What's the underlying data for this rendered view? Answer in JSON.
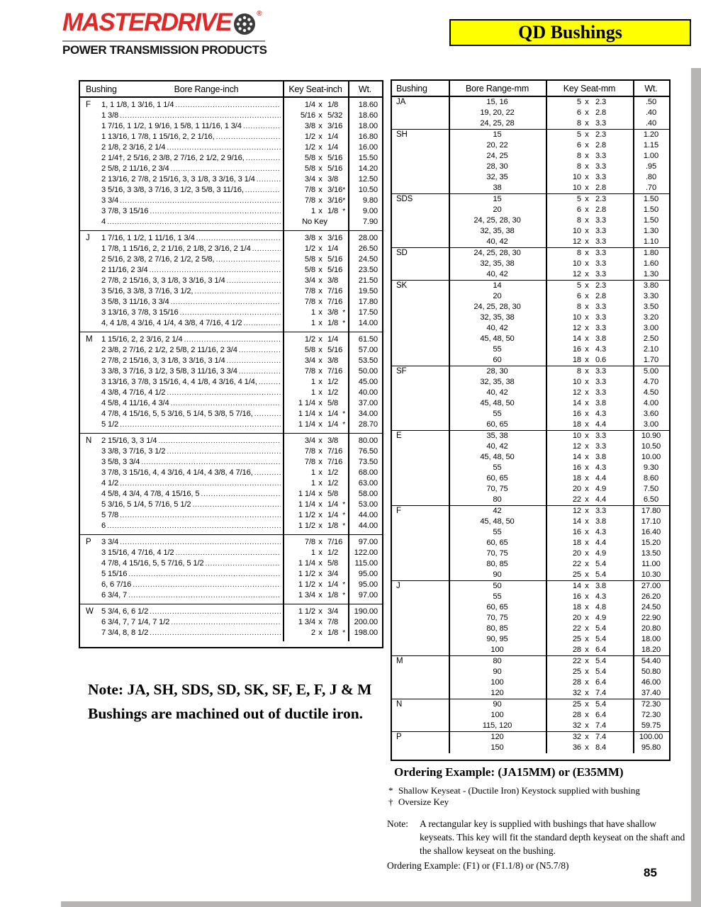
{
  "header": {
    "brand": "MASTERDRIVE",
    "brand_registered": "®",
    "brand_subtitle": "POWER TRANSMISSION PRODUCTS",
    "page_title": "QD Bushings"
  },
  "colors": {
    "brand_red": "#e32726",
    "title_bg": "#ffff00"
  },
  "inch_table": {
    "columns": [
      "Bushing",
      "Bore Range-inch",
      "Key Seat-inch",
      "Wt."
    ],
    "sections": [
      {
        "code": "F",
        "rows": [
          {
            "bore": "1, 1 1/8, 1 3/16, 1 1/4",
            "kw": "1/4",
            "kd": "1/8",
            "star": "",
            "wt": "18.60"
          },
          {
            "bore": "1 3/8",
            "kw": "5/16",
            "kd": "5/32",
            "star": "",
            "wt": "18.60"
          },
          {
            "bore": "1 7/16, 1 1/2, 1 9/16, 1 5/8, 1 11/16, 1 3/4",
            "kw": "3/8",
            "kd": "3/16",
            "star": "",
            "wt": "18.00"
          },
          {
            "bore": "1 13/16, 1 7/8, 1 15/16, 2, 2 1/16,",
            "kw": "1/2",
            "kd": "1/4",
            "star": "",
            "wt": "16.80"
          },
          {
            "bore": "2 1/8, 2 3/16, 2 1/4",
            "kw": "1/2",
            "kd": "1/4",
            "star": "",
            "wt": "16.00"
          },
          {
            "bore": "2 1/4†, 2 5/16, 2 3/8, 2 7/16, 2 1/2, 2 9/16,",
            "kw": "5/8",
            "kd": "5/16",
            "star": "",
            "wt": "15.50"
          },
          {
            "bore": "2 5/8, 2 11/16, 2 3/4",
            "kw": "5/8",
            "kd": "5/16",
            "star": "",
            "wt": "14.20"
          },
          {
            "bore": "2 13/16, 2 7/8, 2 15/16, 3, 3 1/8, 3 3/16, 3 1/4",
            "kw": "3/4",
            "kd": "3/8",
            "star": "",
            "wt": "12.50"
          },
          {
            "bore": "3 5/16, 3 3/8, 3 7/16, 3 1/2, 3 5/8, 3 11/16,",
            "kw": "7/8",
            "kd": "3/16",
            "star": "*",
            "wt": "10.50"
          },
          {
            "bore": "3 3/4",
            "kw": "7/8",
            "kd": "3/16",
            "star": "*",
            "wt": "9.80"
          },
          {
            "bore": "3 7/8, 3 15/16",
            "kw": "1",
            "kd": "1/8",
            "star": "*",
            "wt": "9.00"
          },
          {
            "bore": "4",
            "kw": "No Key",
            "kd": "",
            "star": "",
            "wt": "7.90"
          }
        ]
      },
      {
        "code": "J",
        "rows": [
          {
            "bore": "1 7/16, 1 1/2, 1 11/16, 1 3/4",
            "kw": "3/8",
            "kd": "3/16",
            "star": "",
            "wt": "28.00"
          },
          {
            "bore": "1 7/8, 1 15/16, 2, 2 1/16, 2 1/8, 2 3/16, 2 1/4",
            "kw": "1/2",
            "kd": "1/4",
            "star": "",
            "wt": "26.50"
          },
          {
            "bore": "2 5/16, 2 3/8, 2 7/16, 2 1/2, 2 5/8,",
            "kw": "5/8",
            "kd": "5/16",
            "star": "",
            "wt": "24.50"
          },
          {
            "bore": "2 11/16, 2 3/4",
            "kw": "5/8",
            "kd": "5/16",
            "star": "",
            "wt": "23.50"
          },
          {
            "bore": "2 7/8, 2 15/16, 3, 3 1/8, 3 3/16, 3 1/4",
            "kw": "3/4",
            "kd": "3/8",
            "star": "",
            "wt": "21.50"
          },
          {
            "bore": "3 5/16, 3 3/8, 3 7/16, 3 1/2,",
            "kw": "7/8",
            "kd": "7/16",
            "star": "",
            "wt": "19.50"
          },
          {
            "bore": "3 5/8, 3 11/16, 3 3/4",
            "kw": "7/8",
            "kd": "7/16",
            "star": "",
            "wt": "17.80"
          },
          {
            "bore": "3 13/16, 3 7/8, 3 15/16",
            "kw": "1",
            "kd": "3/8",
            "star": "*",
            "wt": "17.50"
          },
          {
            "bore": "4, 4 1/8, 4 3/16, 4 1/4, 4 3/8, 4 7/16, 4 1/2",
            "kw": "1",
            "kd": "1/8",
            "star": "*",
            "wt": "14.00"
          }
        ]
      },
      {
        "code": "M",
        "rows": [
          {
            "bore": "1 15/16, 2, 2 3/16, 2 1/4",
            "kw": "1/2",
            "kd": "1/4",
            "star": "",
            "wt": "61.50"
          },
          {
            "bore": "2 3/8, 2 7/16, 2 1/2, 2 5/8, 2 11/16, 2 3/4",
            "kw": "5/8",
            "kd": "5/16",
            "star": "",
            "wt": "57.00"
          },
          {
            "bore": "2 7/8, 2 15/16, 3, 3 1/8, 3 3/16, 3 1/4",
            "kw": "3/4",
            "kd": "3/8",
            "star": "",
            "wt": "53.50"
          },
          {
            "bore": "3 3/8, 3 7/16, 3 1/2, 3 5/8, 3 11/16, 3 3/4",
            "kw": "7/8",
            "kd": "7/16",
            "star": "",
            "wt": "50.00"
          },
          {
            "bore": "3 13/16, 3 7/8, 3 15/16, 4, 4 1/8, 4 3/16, 4 1/4,",
            "kw": "1",
            "kd": "1/2",
            "star": "",
            "wt": "45.00"
          },
          {
            "bore": "4 3/8, 4 7/16, 4 1/2",
            "kw": "1",
            "kd": "1/2",
            "star": "",
            "wt": "40.00"
          },
          {
            "bore": "4 5/8, 4 11/16, 4 3/4",
            "kw": "1 1/4",
            "kd": "5/8",
            "star": "",
            "wt": "37.00"
          },
          {
            "bore": "4 7/8, 4 15/16, 5, 5 3/16, 5 1/4, 5 3/8, 5 7/16,",
            "kw": "1 1/4",
            "kd": "1/4",
            "star": "*",
            "wt": "34.00"
          },
          {
            "bore": "5 1/2",
            "kw": "1 1/4",
            "kd": "1/4",
            "star": "*",
            "wt": "28.70"
          }
        ]
      },
      {
        "code": "N",
        "rows": [
          {
            "bore": "2 15/16, 3, 3 1/4",
            "kw": "3/4",
            "kd": "3/8",
            "star": "",
            "wt": "80.00"
          },
          {
            "bore": "3 3/8, 3 7/16, 3 1/2",
            "kw": "7/8",
            "kd": "7/16",
            "star": "",
            "wt": "76.50"
          },
          {
            "bore": "3 5/8, 3 3/4",
            "kw": "7/8",
            "kd": "7/16",
            "star": "",
            "wt": "73.50"
          },
          {
            "bore": "3 7/8, 3 15/16, 4, 4 3/16, 4 1/4, 4 3/8, 4 7/16,",
            "kw": "1",
            "kd": "1/2",
            "star": "",
            "wt": "68.00"
          },
          {
            "bore": "4 1/2",
            "kw": "1",
            "kd": "1/2",
            "star": "",
            "wt": "63.00"
          },
          {
            "bore": "4 5/8, 4 3/4, 4 7/8, 4 15/16, 5",
            "kw": "1 1/4",
            "kd": "5/8",
            "star": "",
            "wt": "58.00"
          },
          {
            "bore": "5 3/16, 5 1/4, 5 7/16, 5 1/2",
            "kw": "1 1/4",
            "kd": "1/4",
            "star": "*",
            "wt": "53.00"
          },
          {
            "bore": "5 7/8",
            "kw": "1 1/2",
            "kd": "1/4",
            "star": "*",
            "wt": "44.00"
          },
          {
            "bore": "6",
            "kw": "1 1/2",
            "kd": "1/8",
            "star": "*",
            "wt": "44.00"
          }
        ]
      },
      {
        "code": "P",
        "rows": [
          {
            "bore": "3 3/4",
            "kw": "7/8",
            "kd": "7/16",
            "star": "",
            "wt": "97.00"
          },
          {
            "bore": "3 15/16, 4 7/16, 4 1/2",
            "kw": "1",
            "kd": "1/2",
            "star": "",
            "wt": "122.00"
          },
          {
            "bore": "4 7/8, 4 15/16, 5, 5 7/16, 5 1/2",
            "kw": "1 1/4",
            "kd": "5/8",
            "star": "",
            "wt": "115.00"
          },
          {
            "bore": "5 15/16",
            "kw": "1 1/2",
            "kd": "3/4",
            "star": "",
            "wt": "95.00"
          },
          {
            "bore": "6, 6 7/16",
            "kw": "1 1/2",
            "kd": "1/4",
            "star": "*",
            "wt": "95.00"
          },
          {
            "bore": "6 3/4, 7",
            "kw": "1 3/4",
            "kd": "1/8",
            "star": "*",
            "wt": "97.00"
          }
        ]
      },
      {
        "code": "W",
        "rows": [
          {
            "bore": "5 3/4, 6, 6 1/2",
            "kw": "1 1/2",
            "kd": "3/4",
            "star": "",
            "wt": "190.00"
          },
          {
            "bore": "6 3/4, 7, 7 1/4, 7 1/2",
            "kw": "1 3/4",
            "kd": "7/8",
            "star": "",
            "wt": "200.00"
          },
          {
            "bore": "7 3/4, 8, 8 1/2",
            "kw": "2",
            "kd": "1/8",
            "star": "*",
            "wt": "198.00"
          }
        ]
      }
    ]
  },
  "mm_table": {
    "columns": [
      "Bushing",
      "Bore Range-mm",
      "Key Seat-mm",
      "Wt."
    ],
    "sections": [
      {
        "code": "JA",
        "rows": [
          {
            "bore": "15, 16",
            "kw": "5",
            "kd": "2.3",
            "wt": ".50"
          },
          {
            "bore": "19, 20, 22",
            "kw": "6",
            "kd": "2.8",
            "wt": ".40"
          },
          {
            "bore": "24, 25, 28",
            "kw": "8",
            "kd": "3.3",
            "wt": ".40"
          }
        ]
      },
      {
        "code": "SH",
        "rows": [
          {
            "bore": "15",
            "kw": "5",
            "kd": "2.3",
            "wt": "1.20"
          },
          {
            "bore": "20, 22",
            "kw": "6",
            "kd": "2.8",
            "wt": "1.15"
          },
          {
            "bore": "24, 25",
            "kw": "8",
            "kd": "3.3",
            "wt": "1.00"
          },
          {
            "bore": "28, 30",
            "kw": "8",
            "kd": "3.3",
            "wt": ".95"
          },
          {
            "bore": "32, 35",
            "kw": "10",
            "kd": "3.3",
            "wt": ".80"
          },
          {
            "bore": "38",
            "kw": "10",
            "kd": "2.8",
            "wt": ".70"
          }
        ]
      },
      {
        "code": "SDS",
        "rows": [
          {
            "bore": "15",
            "kw": "5",
            "kd": "2.3",
            "wt": "1.50"
          },
          {
            "bore": "20",
            "kw": "6",
            "kd": "2.8",
            "wt": "1.50"
          },
          {
            "bore": "24, 25, 28, 30",
            "kw": "8",
            "kd": "3.3",
            "wt": "1.50"
          },
          {
            "bore": "32, 35, 38",
            "kw": "10",
            "kd": "3.3",
            "wt": "1.30"
          },
          {
            "bore": "40, 42",
            "kw": "12",
            "kd": "3.3",
            "wt": "1.10"
          }
        ]
      },
      {
        "code": "SD",
        "rows": [
          {
            "bore": "24, 25, 28, 30",
            "kw": "8",
            "kd": "3.3",
            "wt": "1.80"
          },
          {
            "bore": "32, 35, 38",
            "kw": "10",
            "kd": "3.3",
            "wt": "1.60"
          },
          {
            "bore": "40, 42",
            "kw": "12",
            "kd": "3.3",
            "wt": "1.30"
          }
        ]
      },
      {
        "code": "SK",
        "rows": [
          {
            "bore": "14",
            "kw": "5",
            "kd": "2.3",
            "wt": "3.80"
          },
          {
            "bore": "20",
            "kw": "6",
            "kd": "2.8",
            "wt": "3.30"
          },
          {
            "bore": "24, 25, 28, 30",
            "kw": "8",
            "kd": "3.3",
            "wt": "3.50"
          },
          {
            "bore": "32, 35, 38",
            "kw": "10",
            "kd": "3.3",
            "wt": "3.20"
          },
          {
            "bore": "40, 42",
            "kw": "12",
            "kd": "3.3",
            "wt": "3.00"
          },
          {
            "bore": "45, 48, 50",
            "kw": "14",
            "kd": "3.8",
            "wt": "2.50"
          },
          {
            "bore": "55",
            "kw": "16",
            "kd": "4.3",
            "wt": "2.10"
          },
          {
            "bore": "60",
            "kw": "18",
            "kd": "0.6",
            "wt": "1.70"
          }
        ]
      },
      {
        "code": "SF",
        "rows": [
          {
            "bore": "28, 30",
            "kw": "8",
            "kd": "3.3",
            "wt": "5.00"
          },
          {
            "bore": "32, 35, 38",
            "kw": "10",
            "kd": "3.3",
            "wt": "4.70"
          },
          {
            "bore": "40, 42",
            "kw": "12",
            "kd": "3.3",
            "wt": "4.50"
          },
          {
            "bore": "45, 48, 50",
            "kw": "14",
            "kd": "3.8",
            "wt": "4.00"
          },
          {
            "bore": "55",
            "kw": "16",
            "kd": "4.3",
            "wt": "3.60"
          },
          {
            "bore": "60, 65",
            "kw": "18",
            "kd": "4.4",
            "wt": "3.00"
          }
        ]
      },
      {
        "code": "E",
        "rows": [
          {
            "bore": "35, 38",
            "kw": "10",
            "kd": "3.3",
            "wt": "10.90"
          },
          {
            "bore": "40, 42",
            "kw": "12",
            "kd": "3.3",
            "wt": "10.50"
          },
          {
            "bore": "45, 48, 50",
            "kw": "14",
            "kd": "3.8",
            "wt": "10.00"
          },
          {
            "bore": "55",
            "kw": "16",
            "kd": "4.3",
            "wt": "9.30"
          },
          {
            "bore": "60, 65",
            "kw": "18",
            "kd": "4.4",
            "wt": "8.60"
          },
          {
            "bore": "70, 75",
            "kw": "20",
            "kd": "4.9",
            "wt": "7.50"
          },
          {
            "bore": "80",
            "kw": "22",
            "kd": "4.4",
            "wt": "6.50"
          }
        ]
      },
      {
        "code": "F",
        "rows": [
          {
            "bore": "42",
            "kw": "12",
            "kd": "3.3",
            "wt": "17.80"
          },
          {
            "bore": "45, 48, 50",
            "kw": "14",
            "kd": "3.8",
            "wt": "17.10"
          },
          {
            "bore": "55",
            "kw": "16",
            "kd": "4.3",
            "wt": "16.40"
          },
          {
            "bore": "60, 65",
            "kw": "18",
            "kd": "4.4",
            "wt": "15.20"
          },
          {
            "bore": "70, 75",
            "kw": "20",
            "kd": "4.9",
            "wt": "13.50"
          },
          {
            "bore": "80, 85",
            "kw": "22",
            "kd": "5.4",
            "wt": "11.00"
          },
          {
            "bore": "90",
            "kw": "25",
            "kd": "5.4",
            "wt": "10.30"
          }
        ]
      },
      {
        "code": "J",
        "rows": [
          {
            "bore": "50",
            "kw": "14",
            "kd": "3.8",
            "wt": "27.00"
          },
          {
            "bore": "55",
            "kw": "16",
            "kd": "4.3",
            "wt": "26.20"
          },
          {
            "bore": "60, 65",
            "kw": "18",
            "kd": "4.8",
            "wt": "24.50"
          },
          {
            "bore": "70, 75",
            "kw": "20",
            "kd": "4.9",
            "wt": "22.90"
          },
          {
            "bore": "80, 85",
            "kw": "22",
            "kd": "5.4",
            "wt": "20.80"
          },
          {
            "bore": "90, 95",
            "kw": "25",
            "kd": "5.4",
            "wt": "18.00"
          },
          {
            "bore": "100",
            "kw": "28",
            "kd": "6.4",
            "wt": "18.20"
          }
        ]
      },
      {
        "code": "M",
        "rows": [
          {
            "bore": "80",
            "kw": "22",
            "kd": "5.4",
            "wt": "54.40"
          },
          {
            "bore": "90",
            "kw": "25",
            "kd": "5.4",
            "wt": "50.80"
          },
          {
            "bore": "100",
            "kw": "28",
            "kd": "6.4",
            "wt": "46.00"
          },
          {
            "bore": "120",
            "kw": "32",
            "kd": "7.4",
            "wt": "37.40"
          }
        ]
      },
      {
        "code": "N",
        "rows": [
          {
            "bore": "90",
            "kw": "25",
            "kd": "5.4",
            "wt": "72.30"
          },
          {
            "bore": "100",
            "kw": "28",
            "kd": "6.4",
            "wt": "72.30"
          },
          {
            "bore": "115, 120",
            "kw": "32",
            "kd": "7.4",
            "wt": "59.75"
          }
        ]
      },
      {
        "code": "P",
        "rows": [
          {
            "bore": "120",
            "kw": "32",
            "kd": "7.4",
            "wt": "100.00"
          },
          {
            "bore": "150",
            "kw": "36",
            "kd": "8.4",
            "wt": "95.80"
          }
        ]
      }
    ]
  },
  "notes": {
    "left_note": "Note: JA, SH, SDS, SD, SK, SF, E, F, J & M Bushings are machined out of ductile iron.",
    "ordering_example_mm": "Ordering Example:   (JA15MM)  or (E35MM)",
    "footnote_star_symbol": "*",
    "footnote_star": "Shallow Keyseat - (Ductile Iron) Keystock supplied with bushing",
    "footnote_dagger_symbol": "†",
    "footnote_dagger": "Oversize Key",
    "note_label": "Note:",
    "note_body": "A rectangular key is supplied with bushings that have shallow keyseats. This key will fit the standard depth keyseat on the shaft and the shallow keyseat on the bushing.",
    "ordering_example_inch": "Ordering Example:   (F1)  or (F1.1/8)  or (N5.7/8)",
    "page_number": "85"
  }
}
